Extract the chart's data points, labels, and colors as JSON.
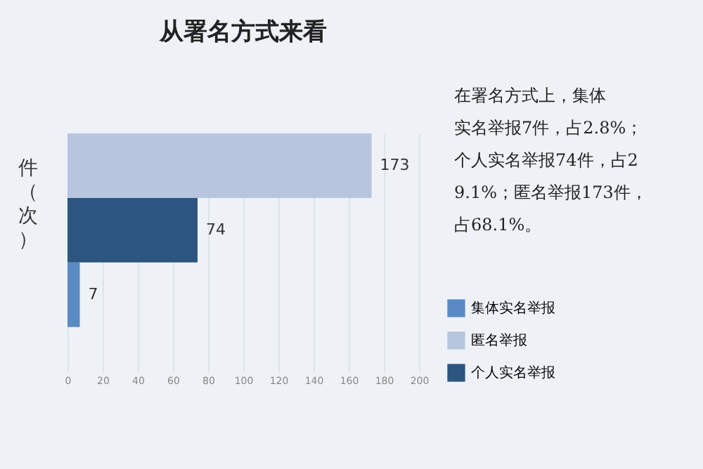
{
  "chart_data": {
    "type": "bar",
    "orientation": "horizontal",
    "title": "从署名方式来看",
    "ylabel": "件（次）",
    "categories": [
      null,
      null,
      null
    ],
    "series": [
      {
        "name": "集体实名举报",
        "color": "#5a8ac4",
        "values": [
          null,
          null,
          7
        ]
      },
      {
        "name": "匿名举报",
        "color": "#b7c5df",
        "values": [
          173,
          null,
          null
        ]
      },
      {
        "name": "个人实名举报",
        "color": "#2c557f",
        "values": [
          null,
          74,
          null
        ]
      }
    ],
    "xlim": [
      0,
      200
    ],
    "xticks": [
      0,
      20,
      40,
      60,
      80,
      100,
      120,
      140,
      160,
      180,
      200
    ],
    "grid": "x",
    "legend": "right",
    "data_labels": true,
    "annotations": [
      "在署名方式上，集体实名举报7件，占2.8%；个人实名举报74件，占29.1%；匿名举报173件，占68.1%。"
    ]
  }
}
